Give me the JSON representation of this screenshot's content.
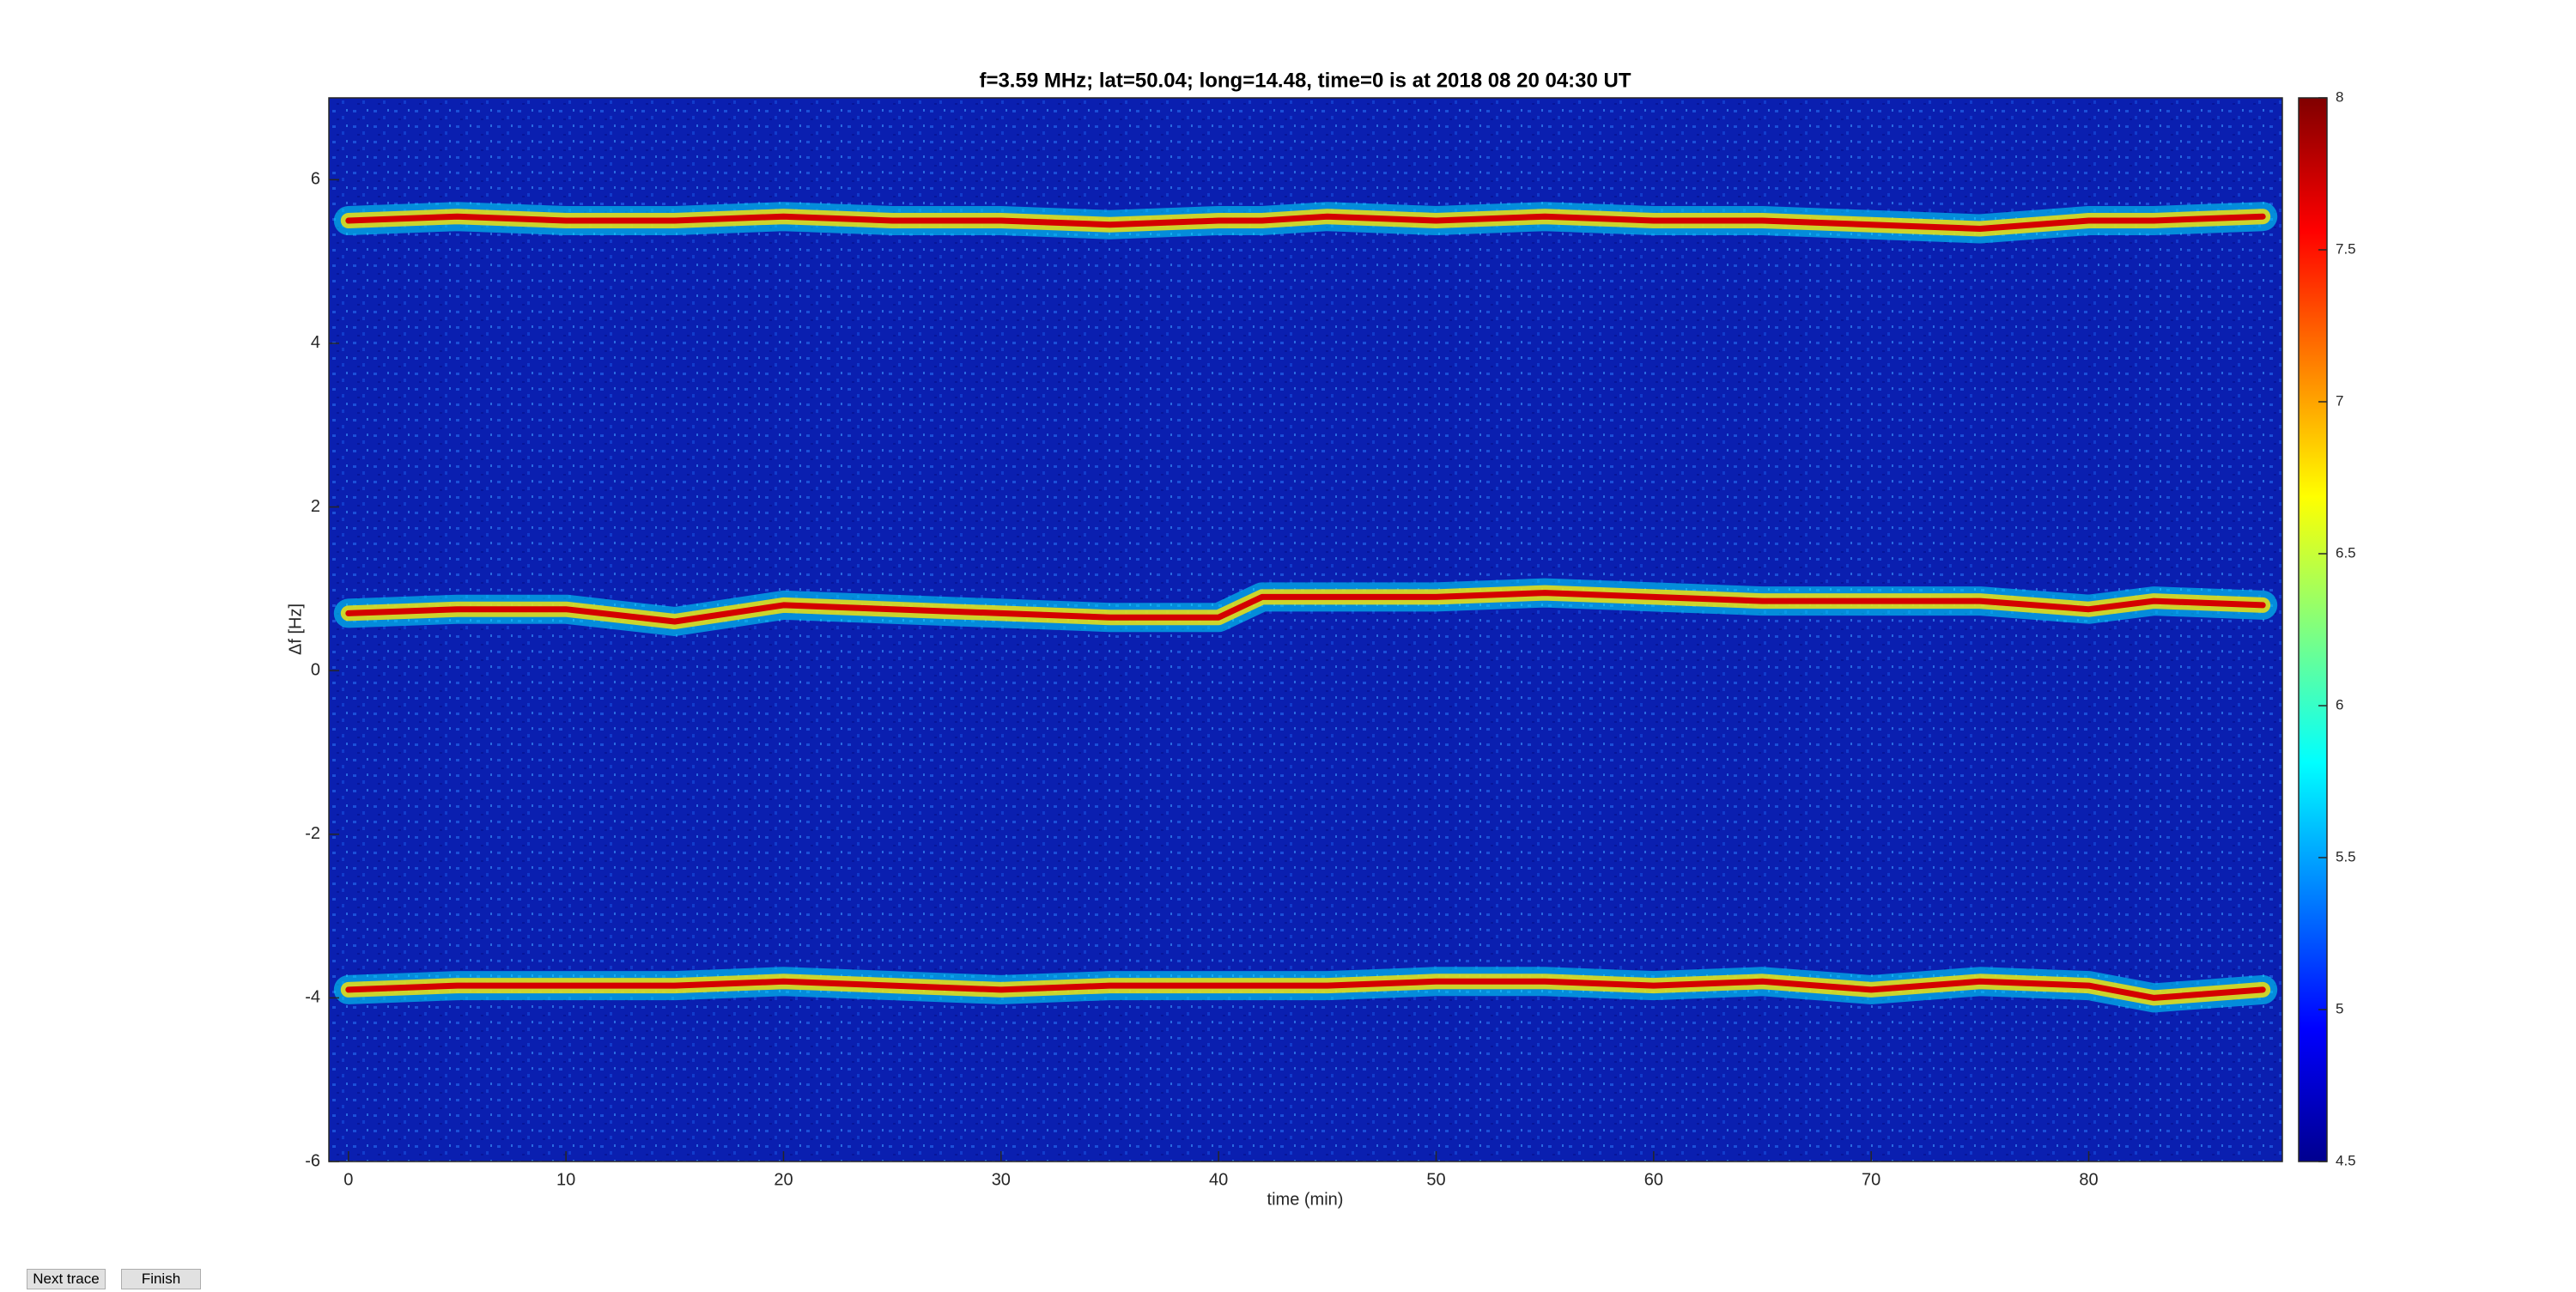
{
  "chart_data": {
    "type": "spectrogram",
    "title": "f=3.59 MHz;  lat=50.04; long=14.48, time=0 is at 2018 08 20 04:30 UT",
    "x_label": "time (min)",
    "y_label": "Δf [Hz]",
    "x": [
      0,
      5,
      10,
      15,
      20,
      25,
      30,
      35,
      40,
      42,
      45,
      50,
      55,
      60,
      65,
      70,
      75,
      80,
      83,
      88
    ],
    "series": [
      {
        "color": "#d40000",
        "values": [
          5.5,
          5.55,
          5.5,
          5.5,
          5.55,
          5.5,
          5.5,
          5.45,
          5.5,
          5.5,
          5.55,
          5.5,
          5.55,
          5.5,
          5.5,
          5.45,
          5.4,
          5.5,
          5.5,
          5.55
        ]
      },
      {
        "color": "#d40000",
        "values": [
          0.7,
          0.75,
          0.75,
          0.6,
          0.8,
          0.75,
          0.7,
          0.65,
          0.65,
          0.9,
          0.9,
          0.9,
          0.95,
          0.9,
          0.85,
          0.85,
          0.85,
          0.75,
          0.85,
          0.8
        ]
      },
      {
        "color": "#d40000",
        "values": [
          -3.9,
          -3.85,
          -3.85,
          -3.85,
          -3.8,
          -3.85,
          -3.9,
          -3.85,
          -3.85,
          -3.85,
          -3.85,
          -3.8,
          -3.8,
          -3.85,
          -3.8,
          -3.9,
          -3.8,
          -3.85,
          -4.0,
          -3.9
        ]
      }
    ],
    "xlim": [
      -0.9,
      88.9
    ],
    "ylim": [
      -6,
      7
    ],
    "xticks": [
      0,
      10,
      20,
      30,
      40,
      50,
      60,
      70,
      80
    ],
    "yticks": [
      -6,
      -4,
      -2,
      0,
      2,
      4,
      6
    ],
    "colorbar": {
      "clim": [
        4.5,
        8
      ],
      "ticks": [
        4.5,
        5,
        5.5,
        6,
        6.5,
        7,
        7.5,
        8
      ]
    },
    "buttons": [
      "Next trace",
      "Finish"
    ]
  }
}
